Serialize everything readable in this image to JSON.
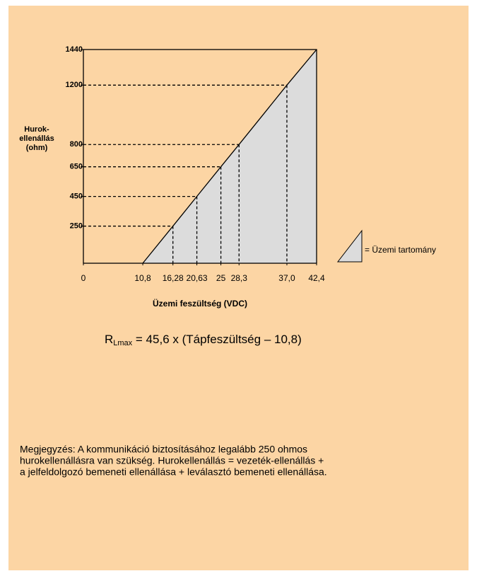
{
  "chart_data": {
    "type": "area",
    "ylabel": [
      "Hurok-",
      "ellenállás",
      "(ohm)"
    ],
    "xlabel": "Üzemi feszültség (VDC)",
    "x": [
      10.8,
      16.28,
      20.63,
      25,
      28.3,
      37.0,
      42.4
    ],
    "values": [
      0,
      250,
      450,
      650,
      800,
      1200,
      1440
    ],
    "color": "#dcdcdc",
    "legend": "= Üzemi tartomány",
    "xlim": [
      0,
      42.4
    ],
    "ylim": [
      0,
      1440
    ],
    "xticks": [
      0,
      {
        "value": 10.8,
        "label": "10,8"
      },
      {
        "value": 16.28,
        "label": "16,28"
      },
      {
        "value": 20.63,
        "label": "20,63"
      },
      25,
      {
        "value": 28.3,
        "label": "28,3"
      },
      {
        "value": 37.0,
        "label": "37,0"
      },
      {
        "value": 42.4,
        "label": "42,4"
      }
    ],
    "yticks": [
      250,
      450,
      650,
      800,
      1200,
      1440
    ]
  },
  "formula": {
    "main": "R",
    "sub": "Lmax",
    "rest": " = 45,6 x (Tápfeszültség – 10,8)"
  },
  "note": [
    "Megjegyzés: A kommunikáció biztosításához legalább 250 ohmos",
    "hurokellenállásra van szükség. Hurokellenállás = vezeték-ellenállás +",
    "a jelfeldolgozó bemeneti ellenállása + leválasztó bemeneti ellenállása."
  ]
}
